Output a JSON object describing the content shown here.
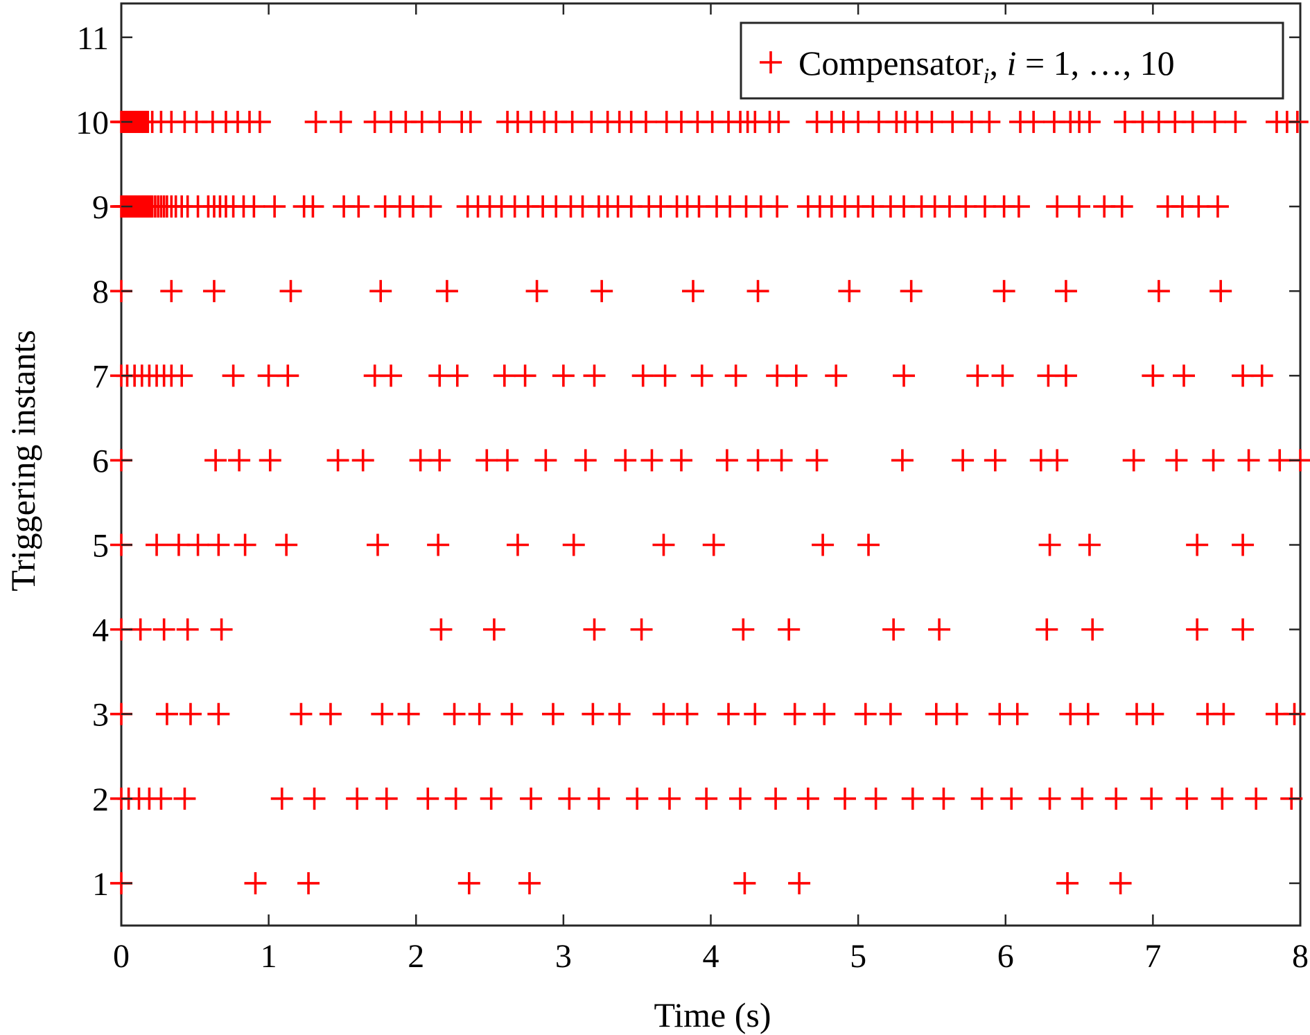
{
  "chart_data": {
    "type": "scatter",
    "title": "",
    "xlabel": "Time (s)",
    "ylabel": "Triggering instants",
    "xlim": [
      0,
      8
    ],
    "ylim": [
      0.5,
      11.4
    ],
    "xticks": [
      "0",
      "1",
      "2",
      "3",
      "4",
      "5",
      "6",
      "7",
      "8"
    ],
    "yticks": [
      "1",
      "2",
      "3",
      "4",
      "5",
      "6",
      "7",
      "8",
      "9",
      "10",
      "11"
    ],
    "grid": false,
    "legend": {
      "placement": "top-right",
      "label_prefix": "Compensator",
      "label_subscript": "i",
      "label_sep": ", ",
      "label_var": "i",
      "label_suffix": " = 1, …, 10"
    },
    "marker_color": "#ff0000",
    "marker": "plus",
    "series": [
      {
        "y": 1,
        "x": [
          0,
          0.91,
          1.27,
          2.36,
          2.77,
          4.23,
          4.6,
          6.42,
          6.78
        ]
      },
      {
        "y": 2,
        "x": [
          0,
          0.05,
          0.12,
          0.19,
          0.27,
          0.43,
          1.09,
          1.31,
          1.6,
          1.8,
          2.08,
          2.27,
          2.51,
          2.78,
          3.04,
          3.24,
          3.5,
          3.72,
          3.97,
          4.2,
          4.44,
          4.66,
          4.91,
          5.12,
          5.37,
          5.58,
          5.84,
          6.04,
          6.3,
          6.52,
          6.75,
          6.99,
          7.23,
          7.47,
          7.7,
          7.94
        ]
      },
      {
        "y": 3,
        "x": [
          0,
          0.31,
          0.47,
          0.66,
          1.22,
          1.42,
          1.77,
          1.95,
          2.26,
          2.43,
          2.65,
          2.93,
          3.2,
          3.38,
          3.68,
          3.84,
          4.12,
          4.3,
          4.57,
          4.77,
          5.05,
          5.22,
          5.53,
          5.67,
          5.96,
          6.08,
          6.44,
          6.56,
          6.89,
          7.0,
          7.37,
          7.48,
          7.84,
          7.96
        ]
      },
      {
        "y": 4,
        "x": [
          0,
          0.13,
          0.29,
          0.45,
          0.68,
          2.17,
          2.53,
          3.21,
          3.53,
          4.22,
          4.53,
          5.24,
          5.55,
          6.28,
          6.59,
          7.3,
          7.61
        ]
      },
      {
        "y": 5,
        "x": [
          0,
          0.24,
          0.39,
          0.52,
          0.66,
          0.84,
          1.12,
          1.74,
          2.15,
          2.69,
          3.07,
          3.68,
          4.02,
          4.76,
          5.07,
          6.3,
          6.57,
          7.3,
          7.61
        ]
      },
      {
        "y": 6,
        "x": [
          0,
          0.64,
          0.8,
          1.01,
          1.47,
          1.64,
          2.03,
          2.16,
          2.48,
          2.62,
          2.88,
          3.15,
          3.42,
          3.6,
          3.8,
          4.11,
          4.32,
          4.48,
          4.72,
          5.3,
          5.71,
          5.93,
          6.24,
          6.35,
          6.87,
          7.16,
          7.41,
          7.65,
          7.86,
          8.0
        ]
      },
      {
        "y": 7,
        "x": [
          0,
          0.04,
          0.09,
          0.14,
          0.19,
          0.24,
          0.29,
          0.34,
          0.41,
          0.76,
          1.0,
          1.13,
          1.72,
          1.83,
          2.16,
          2.28,
          2.6,
          2.74,
          3.0,
          3.21,
          3.54,
          3.69,
          3.94,
          4.17,
          4.45,
          4.58,
          4.85,
          5.31,
          5.81,
          5.98,
          6.29,
          6.41,
          7.0,
          7.21,
          7.61,
          7.74
        ]
      },
      {
        "y": 8,
        "x": [
          0,
          0.34,
          0.63,
          1.15,
          1.76,
          2.21,
          2.82,
          3.26,
          3.88,
          4.32,
          4.94,
          5.36,
          5.99,
          6.41,
          7.04,
          7.46
        ]
      },
      {
        "y": 9,
        "x": [
          0,
          0.01,
          0.02,
          0.03,
          0.04,
          0.05,
          0.06,
          0.07,
          0.08,
          0.09,
          0.1,
          0.11,
          0.12,
          0.13,
          0.14,
          0.15,
          0.16,
          0.17,
          0.18,
          0.19,
          0.2,
          0.21,
          0.23,
          0.25,
          0.27,
          0.29,
          0.31,
          0.34,
          0.37,
          0.41,
          0.45,
          0.52,
          0.59,
          0.63,
          0.67,
          0.71,
          0.76,
          0.83,
          0.9,
          1.04,
          1.24,
          1.3,
          1.51,
          1.61,
          1.79,
          1.89,
          1.98,
          2.1,
          2.35,
          2.42,
          2.5,
          2.58,
          2.67,
          2.76,
          2.86,
          2.95,
          3.05,
          3.13,
          3.24,
          3.3,
          3.37,
          3.46,
          3.58,
          3.66,
          3.77,
          3.84,
          3.92,
          4.04,
          4.13,
          4.24,
          4.34,
          4.45,
          4.66,
          4.74,
          4.82,
          4.91,
          5.0,
          5.1,
          5.22,
          5.31,
          5.43,
          5.52,
          5.62,
          5.73,
          5.86,
          5.99,
          6.09,
          6.35,
          6.5,
          6.67,
          6.79,
          7.1,
          7.2,
          7.31,
          7.44
        ]
      },
      {
        "y": 10,
        "x": [
          0,
          0.01,
          0.02,
          0.03,
          0.04,
          0.05,
          0.06,
          0.07,
          0.08,
          0.09,
          0.1,
          0.11,
          0.12,
          0.13,
          0.14,
          0.15,
          0.16,
          0.17,
          0.18,
          0.21,
          0.27,
          0.34,
          0.43,
          0.51,
          0.62,
          0.71,
          0.79,
          0.87,
          0.94,
          1.32,
          1.49,
          1.72,
          1.83,
          1.93,
          2.04,
          2.16,
          2.31,
          2.37,
          2.62,
          2.69,
          2.78,
          2.87,
          2.95,
          3.06,
          3.19,
          3.3,
          3.38,
          3.46,
          3.56,
          3.7,
          3.8,
          3.91,
          4.01,
          4.12,
          4.2,
          4.25,
          4.3,
          4.4,
          4.46,
          4.72,
          4.82,
          4.9,
          5.0,
          5.14,
          5.26,
          5.32,
          5.4,
          5.5,
          5.64,
          5.77,
          5.89,
          6.1,
          6.19,
          6.33,
          6.44,
          6.5,
          6.57,
          6.81,
          6.93,
          7.04,
          7.15,
          7.27,
          7.42,
          7.56,
          7.84,
          7.91,
          7.98
        ]
      }
    ]
  }
}
